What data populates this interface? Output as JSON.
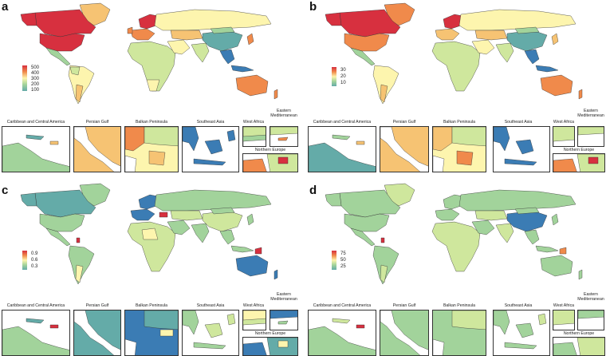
{
  "colors": {
    "red": "#d7303f",
    "orange": "#f08a4b",
    "light_orange": "#f6c373",
    "yellow": "#fdf5ae",
    "light_green": "#cfe79d",
    "green": "#a2d39b",
    "teal": "#64aba8",
    "blue": "#3b7cb4",
    "ocean": "#ffffff",
    "border": "#333333"
  },
  "panels": [
    {
      "letter": "a",
      "legend_ticks": [
        "500",
        "400",
        "300",
        "200",
        "100"
      ],
      "insets": {
        "caribbean": "Caribbean and Central America",
        "persian_gulf": "Persian Gulf",
        "balkan": "Balkan Peninsula",
        "southeast_asia": "Southeast Asia",
        "west_africa": "West Africa",
        "eastern_med": "Eastern Mediterranean",
        "northern_europe": "Northern Europe"
      }
    },
    {
      "letter": "b",
      "legend_ticks": [
        "30",
        "20",
        "10"
      ],
      "insets": {
        "caribbean": "Caribbean and Central America",
        "persian_gulf": "Persian Gulf",
        "balkan": "Balkan Peninsula",
        "southeast_asia": "Southeast Asia",
        "west_africa": "West Africa",
        "eastern_med": "Eastern Mediterranean",
        "northern_europe": "Northern Europe"
      }
    },
    {
      "letter": "c",
      "legend_ticks": [
        "0.9",
        "0.6",
        "0.3"
      ],
      "insets": {
        "caribbean": "Caribbean and Central America",
        "persian_gulf": "Persian Gulf",
        "balkan": "Balkan Peninsula",
        "southeast_asia": "Southeast Asia",
        "west_africa": "West Africa",
        "eastern_med": "Eastern Mediterranean",
        "northern_europe": "Northern Europe"
      }
    },
    {
      "letter": "d",
      "legend_ticks": [
        "75",
        "50",
        "25"
      ],
      "insets": {
        "caribbean": "Caribbean and Central America",
        "persian_gulf": "Persian Gulf",
        "balkan": "Balkan Peninsula",
        "southeast_asia": "Southeast Asia",
        "west_africa": "West Africa",
        "eastern_med": "Eastern Mediterranean",
        "northern_europe": "Northern Europe"
      }
    }
  ]
}
